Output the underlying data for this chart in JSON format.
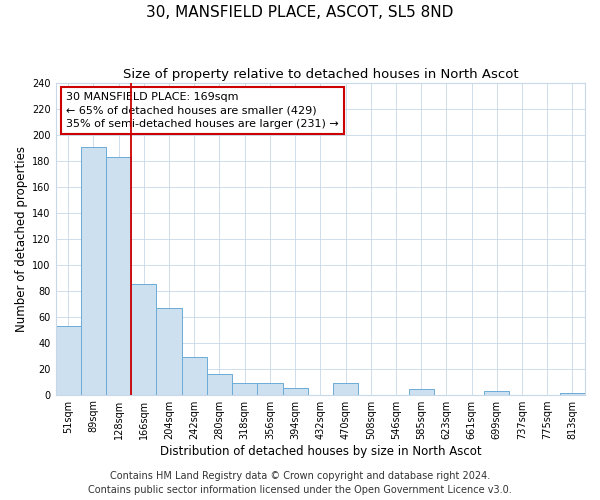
{
  "title": "30, MANSFIELD PLACE, ASCOT, SL5 8ND",
  "subtitle": "Size of property relative to detached houses in North Ascot",
  "xlabel": "Distribution of detached houses by size in North Ascot",
  "ylabel": "Number of detached properties",
  "bin_labels": [
    "51sqm",
    "89sqm",
    "128sqm",
    "166sqm",
    "204sqm",
    "242sqm",
    "280sqm",
    "318sqm",
    "356sqm",
    "394sqm",
    "432sqm",
    "470sqm",
    "508sqm",
    "546sqm",
    "585sqm",
    "623sqm",
    "661sqm",
    "699sqm",
    "737sqm",
    "775sqm",
    "813sqm"
  ],
  "bar_heights": [
    53,
    191,
    183,
    85,
    67,
    29,
    16,
    9,
    9,
    5,
    0,
    9,
    0,
    0,
    4,
    0,
    0,
    3,
    0,
    0,
    1
  ],
  "bar_color": "#cde0f0",
  "bar_edge_color": "#6aabd6",
  "vline_x": 3,
  "vline_color": "#cc0000",
  "annotation_text": "30 MANSFIELD PLACE: 169sqm\n← 65% of detached houses are smaller (429)\n35% of semi-detached houses are larger (231) →",
  "annotation_box_edge": "#cc0000",
  "ylim": [
    0,
    240
  ],
  "yticks": [
    0,
    20,
    40,
    60,
    80,
    100,
    120,
    140,
    160,
    180,
    200,
    220,
    240
  ],
  "footer_line1": "Contains HM Land Registry data © Crown copyright and database right 2024.",
  "footer_line2": "Contains public sector information licensed under the Open Government Licence v3.0.",
  "bg_color": "#ffffff",
  "plot_bg_color": "#ffffff",
  "grid_color": "#c8d8e8",
  "title_fontsize": 11,
  "subtitle_fontsize": 9.5,
  "axis_label_fontsize": 8.5,
  "tick_fontsize": 7,
  "footer_fontsize": 7,
  "annotation_fontsize": 8
}
